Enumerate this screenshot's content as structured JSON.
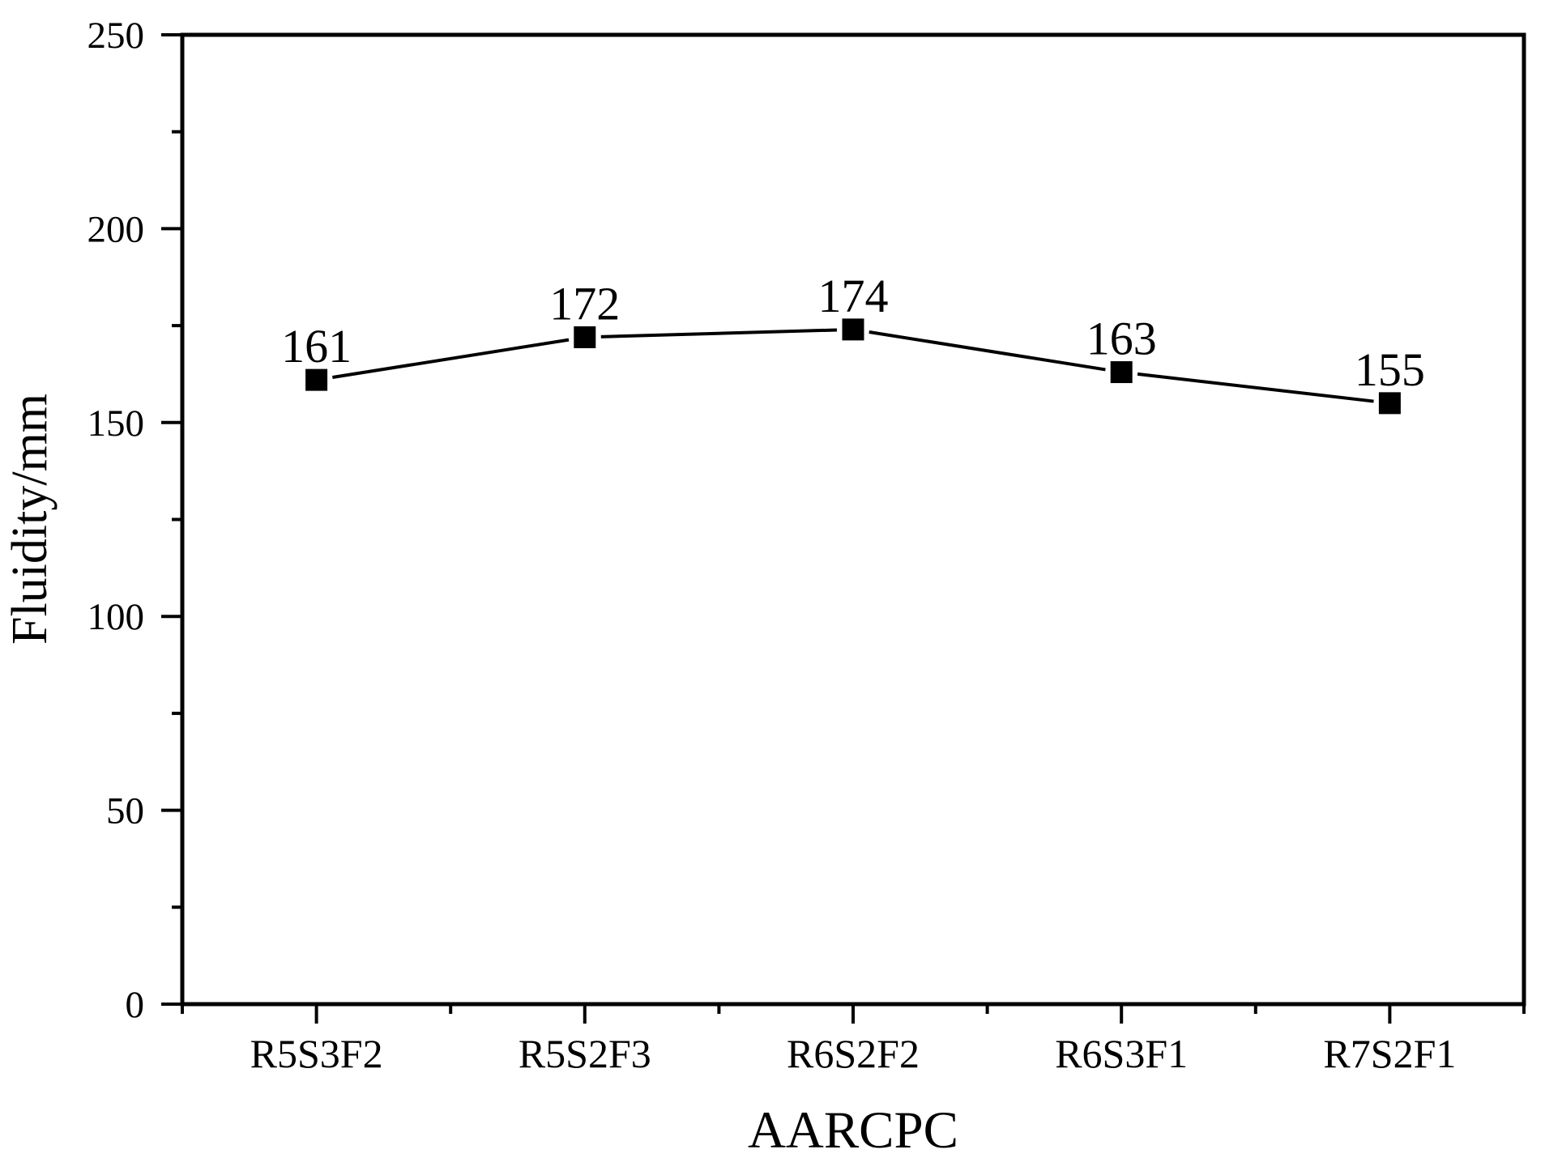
{
  "chart_data": {
    "type": "line",
    "title": "",
    "xlabel": "AARCPC",
    "ylabel": "Fluidity/mm",
    "categories": [
      "R5S3F2",
      "R5S2F3",
      "R6S2F2",
      "R6S3F1",
      "R7S2F1"
    ],
    "values": [
      161,
      172,
      174,
      163,
      155
    ],
    "data_labels": [
      "161",
      "172",
      "174",
      "163",
      "155"
    ],
    "ylim": [
      0,
      250
    ],
    "y_major_step": 50,
    "y_minor_step": 25,
    "y_tick_labels": [
      "0",
      "50",
      "100",
      "150",
      "200",
      "250"
    ],
    "grid": false,
    "legend": false,
    "marker": "filled-square",
    "colors": {
      "line": "#000000",
      "marker": "#000000",
      "text": "#000000",
      "frame": "#000000",
      "background": "#ffffff"
    }
  }
}
